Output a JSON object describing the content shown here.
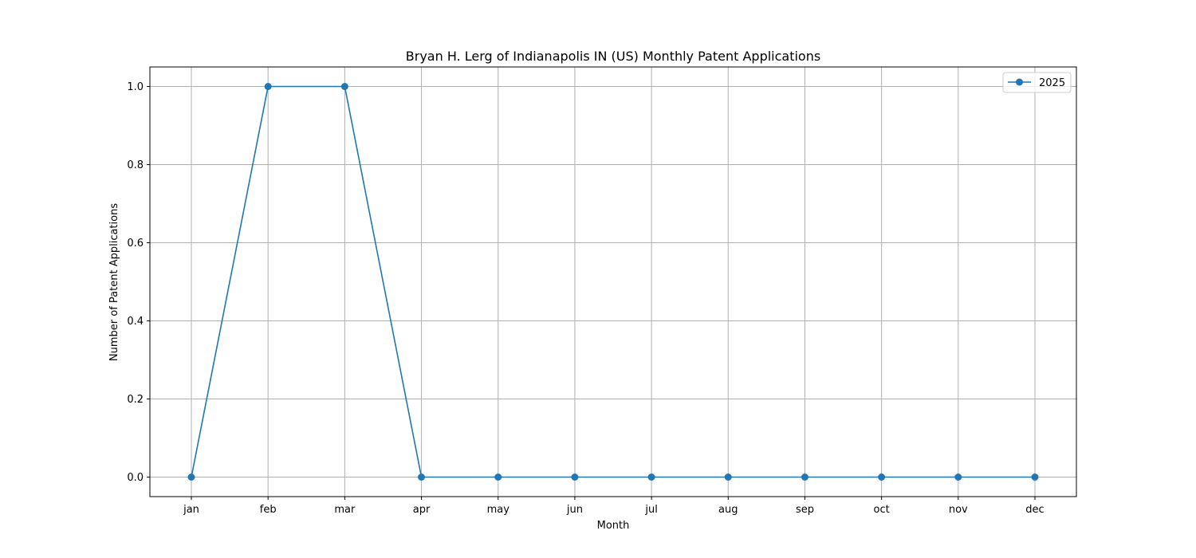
{
  "chart_data": {
    "type": "line",
    "title": "Bryan H. Lerg of Indianapolis IN (US) Monthly Patent Applications",
    "xlabel": "Month",
    "ylabel": "Number of Patent Applications",
    "categories": [
      "jan",
      "feb",
      "mar",
      "apr",
      "may",
      "jun",
      "jul",
      "aug",
      "sep",
      "oct",
      "nov",
      "dec"
    ],
    "series": [
      {
        "name": "2025",
        "values": [
          0,
          1,
          1,
          0,
          0,
          0,
          0,
          0,
          0,
          0,
          0,
          0
        ],
        "color": "#1f77b4"
      }
    ],
    "yticks": [
      "0.0",
      "0.2",
      "0.4",
      "0.6",
      "0.8",
      "1.0"
    ],
    "ylim": [
      -0.05,
      1.05
    ],
    "grid": true,
    "legend": "top-right",
    "marker": "circle"
  }
}
